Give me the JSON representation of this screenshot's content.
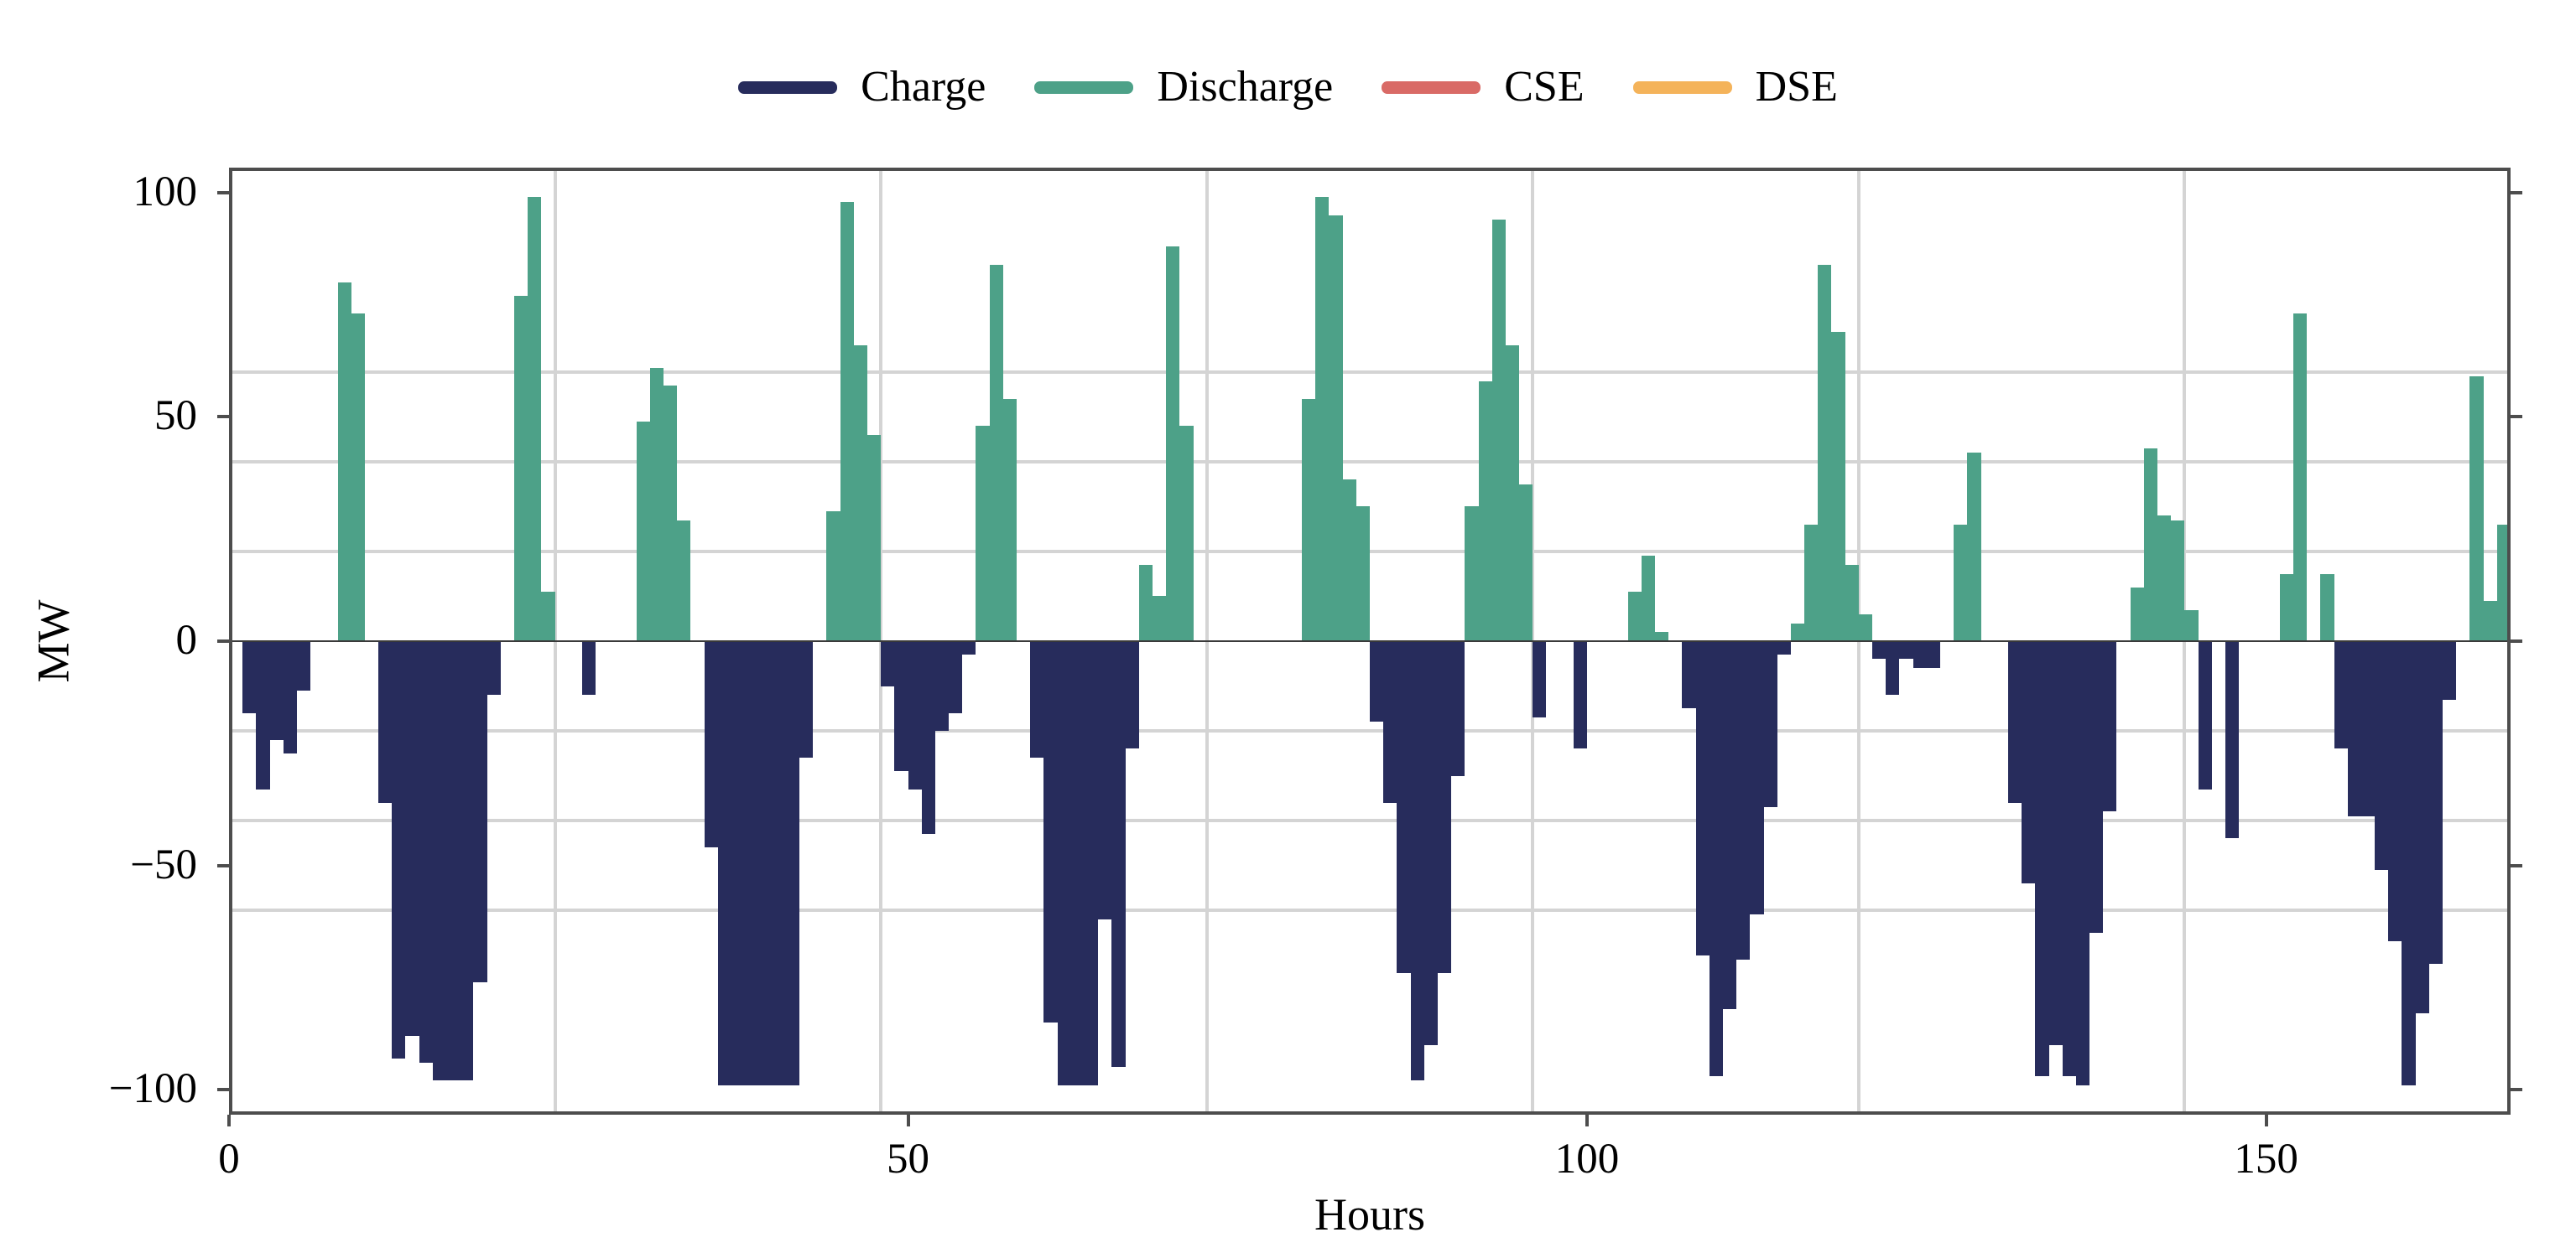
{
  "legend": {
    "items": [
      {
        "label": "Charge",
        "color": "#272c5c"
      },
      {
        "label": "Discharge",
        "color": "#4da188"
      },
      {
        "label": "CSE",
        "color": "#d96a66"
      },
      {
        "label": "DSE",
        "color": "#f4b35a"
      }
    ]
  },
  "axes": {
    "ylabel": "MW",
    "xlabel": "Hours",
    "yticks": [
      {
        "v": 100,
        "label": "100"
      },
      {
        "v": 50,
        "label": "50"
      },
      {
        "v": 0,
        "label": "0"
      },
      {
        "v": -50,
        "label": "−50"
      },
      {
        "v": -100,
        "label": "−100"
      }
    ],
    "xticks": [
      {
        "h": 0,
        "label": "0"
      },
      {
        "h": 50,
        "label": "50"
      },
      {
        "h": 100,
        "label": "100"
      },
      {
        "h": 150,
        "label": "150"
      }
    ]
  },
  "chart_data": {
    "type": "bar",
    "title": "",
    "xlabel": "Hours",
    "ylabel": "MW",
    "xlim": [
      0,
      168
    ],
    "ylim": [
      -105.6,
      105.6
    ],
    "grid": "on",
    "h_gridlines_mw": [
      60,
      40,
      20,
      -20,
      -40,
      -60
    ],
    "v_gridlines_hours": [
      24,
      48,
      72,
      96,
      120,
      144
    ],
    "legend_position": "top-center",
    "series": [
      {
        "name": "Charge",
        "color": "#272c5c",
        "sign": "negative"
      },
      {
        "name": "Discharge",
        "color": "#4da188",
        "sign": "positive"
      },
      {
        "name": "CSE",
        "color": "#d96a66",
        "sign": "none"
      },
      {
        "name": "DSE",
        "color": "#f4b35a",
        "sign": "none"
      }
    ],
    "hours": "0-167, one bar per hour; positive = Discharge (green), negative = Charge (navy)",
    "values": [
      0,
      -16,
      -33,
      -22,
      -25,
      -11,
      0,
      0,
      80,
      73,
      0,
      -36,
      -93,
      -88,
      -94,
      -98,
      -98,
      -98,
      -76,
      -12,
      0,
      77,
      99,
      11,
      0,
      0,
      -12,
      0,
      0,
      0,
      49,
      61,
      57,
      27,
      0,
      -46,
      -99,
      -99,
      -99,
      -99,
      -99,
      -99,
      -26,
      0,
      29,
      98,
      66,
      46,
      -10,
      -29,
      -33,
      -43,
      -20,
      -16,
      -3,
      48,
      84,
      54,
      0,
      -26,
      -85,
      -99,
      -99,
      -99,
      -62,
      -95,
      -24,
      17,
      10,
      88,
      48,
      0,
      0,
      0,
      0,
      0,
      0,
      0,
      0,
      54,
      99,
      95,
      36,
      30,
      -18,
      -36,
      -74,
      -98,
      -90,
      -74,
      -30,
      30,
      58,
      94,
      66,
      35,
      -17,
      0,
      0,
      -24,
      0,
      0,
      0,
      11,
      19,
      2,
      0,
      -15,
      -70,
      -97,
      -82,
      -71,
      -61,
      -37,
      -3,
      4,
      26,
      84,
      69,
      17,
      6,
      -4,
      -12,
      -4,
      -6,
      -6,
      0,
      26,
      42,
      0,
      0,
      -36,
      -54,
      -97,
      -90,
      -97,
      -99,
      -65,
      -38,
      0,
      12,
      43,
      28,
      27,
      7,
      -33,
      0,
      -44,
      0,
      0,
      0,
      15,
      73,
      0,
      15,
      -24,
      -39,
      -39,
      -51,
      -67,
      -99,
      -83,
      -72,
      -13,
      0,
      59,
      9,
      26
    ]
  }
}
